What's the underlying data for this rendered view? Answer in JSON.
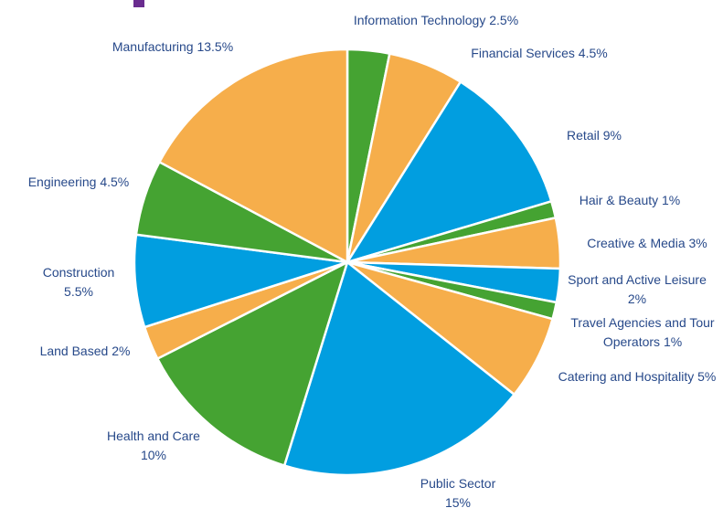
{
  "chart_data": {
    "type": "pie",
    "categories": [
      "Information Technology",
      "Financial Services",
      "Retail",
      "Hair & Beauty",
      "Creative & Media",
      "Sport and Active Leisure",
      "Travel Agencies and Tour Operators",
      "Catering and Hospitality",
      "Public Sector",
      "Health and Care",
      "Land Based",
      "Construction",
      "Engineering",
      "Manufacturing"
    ],
    "values": [
      2.5,
      4.5,
      9,
      1,
      3,
      2,
      1,
      5,
      15,
      10,
      2,
      5.5,
      4.5,
      13.5
    ],
    "value_labels": [
      "2.5%",
      "4.5%",
      "9%",
      "1%",
      "3%",
      "2%",
      "1%",
      "5%",
      "15%",
      "10%",
      "2%",
      "5.5%",
      "4.5%",
      "13.5%"
    ],
    "colors": [
      "#45a332",
      "#f6ae4b",
      "#019ee0",
      "#45a332",
      "#f6ae4b",
      "#019ee0",
      "#45a332",
      "#f6ae4b",
      "#019ee0",
      "#45a332",
      "#f6ae4b",
      "#019ee0",
      "#45a332",
      "#f6ae4b"
    ]
  }
}
